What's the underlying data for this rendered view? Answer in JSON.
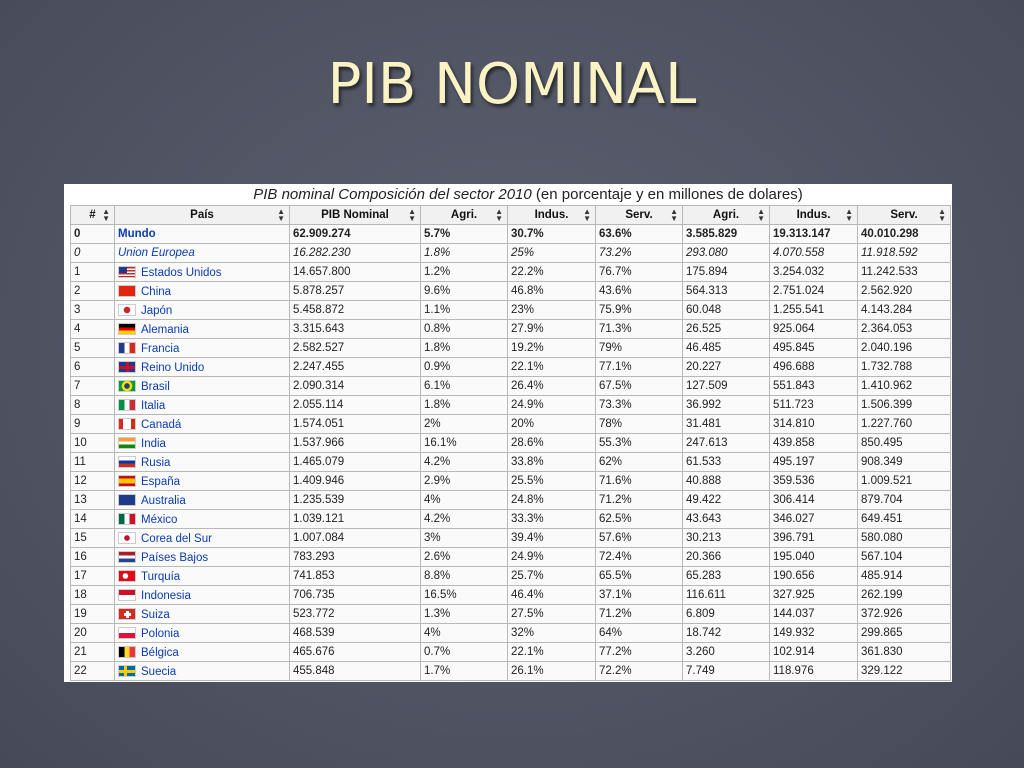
{
  "slide": {
    "title": "PIB NOMINAL"
  },
  "table": {
    "caption_italic": "PIB nominal Composición del sector 2010",
    "caption_rest": "(en porcentaje y en millones de dolares)",
    "headers": [
      "#",
      "País",
      "PIB Nominal",
      "Agri.",
      "Indus.",
      "Serv.",
      "Agri.",
      "Indus.",
      "Serv."
    ],
    "rows": [
      {
        "n": "0",
        "country": "Mundo",
        "flag": "none",
        "pib": "62.909.274",
        "agri_pct": "5.7%",
        "indus_pct": "30.7%",
        "serv_pct": "63.6%",
        "agri": "3.585.829",
        "indus": "19.313.147",
        "serv": "40.010.298"
      },
      {
        "n": "0",
        "country": "Union Europea",
        "flag": "none",
        "pib": "16.282.230",
        "agri_pct": "1.8%",
        "indus_pct": "25%",
        "serv_pct": "73.2%",
        "agri": "293.080",
        "indus": "4.070.558",
        "serv": "11.918.592"
      },
      {
        "n": "1",
        "country": "Estados Unidos",
        "flag": "us",
        "pib": "14.657.800",
        "agri_pct": "1.2%",
        "indus_pct": "22.2%",
        "serv_pct": "76.7%",
        "agri": "175.894",
        "indus": "3.254.032",
        "serv": "11.242.533"
      },
      {
        "n": "2",
        "country": "China",
        "flag": "cn",
        "pib": "5.878.257",
        "agri_pct": "9.6%",
        "indus_pct": "46.8%",
        "serv_pct": "43.6%",
        "agri": "564.313",
        "indus": "2.751.024",
        "serv": "2.562.920"
      },
      {
        "n": "3",
        "country": "Japón",
        "flag": "jp",
        "pib": "5.458.872",
        "agri_pct": "1.1%",
        "indus_pct": "23%",
        "serv_pct": "75.9%",
        "agri": "60.048",
        "indus": "1.255.541",
        "serv": "4.143.284"
      },
      {
        "n": "4",
        "country": "Alemania",
        "flag": "de",
        "pib": "3.315.643",
        "agri_pct": "0.8%",
        "indus_pct": "27.9%",
        "serv_pct": "71.3%",
        "agri": "26.525",
        "indus": "925.064",
        "serv": "2.364.053"
      },
      {
        "n": "5",
        "country": "Francia",
        "flag": "fr",
        "pib": "2.582.527",
        "agri_pct": "1.8%",
        "indus_pct": "19.2%",
        "serv_pct": "79%",
        "agri": "46.485",
        "indus": "495.845",
        "serv": "2.040.196"
      },
      {
        "n": "6",
        "country": "Reino Unido",
        "flag": "gb",
        "pib": "2.247.455",
        "agri_pct": "0.9%",
        "indus_pct": "22.1%",
        "serv_pct": "77.1%",
        "agri": "20.227",
        "indus": "496.688",
        "serv": "1.732.788"
      },
      {
        "n": "7",
        "country": "Brasil",
        "flag": "br",
        "pib": "2.090.314",
        "agri_pct": "6.1%",
        "indus_pct": "26.4%",
        "serv_pct": "67.5%",
        "agri": "127.509",
        "indus": "551.843",
        "serv": "1.410.962"
      },
      {
        "n": "8",
        "country": "Italia",
        "flag": "it",
        "pib": "2.055.114",
        "agri_pct": "1.8%",
        "indus_pct": "24.9%",
        "serv_pct": "73.3%",
        "agri": "36.992",
        "indus": "511.723",
        "serv": "1.506.399"
      },
      {
        "n": "9",
        "country": "Canadá",
        "flag": "ca",
        "pib": "1.574.051",
        "agri_pct": "2%",
        "indus_pct": "20%",
        "serv_pct": "78%",
        "agri": "31.481",
        "indus": "314.810",
        "serv": "1.227.760"
      },
      {
        "n": "10",
        "country": "India",
        "flag": "in",
        "pib": "1.537.966",
        "agri_pct": "16.1%",
        "indus_pct": "28.6%",
        "serv_pct": "55.3%",
        "agri": "247.613",
        "indus": "439.858",
        "serv": "850.495"
      },
      {
        "n": "11",
        "country": "Rusia",
        "flag": "ru",
        "pib": "1.465.079",
        "agri_pct": "4.2%",
        "indus_pct": "33.8%",
        "serv_pct": "62%",
        "agri": "61.533",
        "indus": "495.197",
        "serv": "908.349"
      },
      {
        "n": "12",
        "country": "España",
        "flag": "es",
        "pib": "1.409.946",
        "agri_pct": "2.9%",
        "indus_pct": "25.5%",
        "serv_pct": "71.6%",
        "agri": "40.888",
        "indus": "359.536",
        "serv": "1.009.521"
      },
      {
        "n": "13",
        "country": "Australia",
        "flag": "au",
        "pib": "1.235.539",
        "agri_pct": "4%",
        "indus_pct": "24.8%",
        "serv_pct": "71.2%",
        "agri": "49.422",
        "indus": "306.414",
        "serv": "879.704"
      },
      {
        "n": "14",
        "country": "México",
        "flag": "mx",
        "pib": "1.039.121",
        "agri_pct": "4.2%",
        "indus_pct": "33.3%",
        "serv_pct": "62.5%",
        "agri": "43.643",
        "indus": "346.027",
        "serv": "649.451"
      },
      {
        "n": "15",
        "country": "Corea del Sur",
        "flag": "kr",
        "pib": "1.007.084",
        "agri_pct": "3%",
        "indus_pct": "39.4%",
        "serv_pct": "57.6%",
        "agri": "30.213",
        "indus": "396.791",
        "serv": "580.080"
      },
      {
        "n": "16",
        "country": "Países Bajos",
        "flag": "nl",
        "pib": "783.293",
        "agri_pct": "2.6%",
        "indus_pct": "24.9%",
        "serv_pct": "72.4%",
        "agri": "20.366",
        "indus": "195.040",
        "serv": "567.104"
      },
      {
        "n": "17",
        "country": "Turquía",
        "flag": "tr",
        "pib": "741.853",
        "agri_pct": "8.8%",
        "indus_pct": "25.7%",
        "serv_pct": "65.5%",
        "agri": "65.283",
        "indus": "190.656",
        "serv": "485.914"
      },
      {
        "n": "18",
        "country": "Indonesia",
        "flag": "id",
        "pib": "706.735",
        "agri_pct": "16.5%",
        "indus_pct": "46.4%",
        "serv_pct": "37.1%",
        "agri": "116.611",
        "indus": "327.925",
        "serv": "262.199"
      },
      {
        "n": "19",
        "country": "Suiza",
        "flag": "ch",
        "pib": "523.772",
        "agri_pct": "1.3%",
        "indus_pct": "27.5%",
        "serv_pct": "71.2%",
        "agri": "6.809",
        "indus": "144.037",
        "serv": "372.926"
      },
      {
        "n": "20",
        "country": "Polonia",
        "flag": "pl",
        "pib": "468.539",
        "agri_pct": "4%",
        "indus_pct": "32%",
        "serv_pct": "64%",
        "agri": "18.742",
        "indus": "149.932",
        "serv": "299.865"
      },
      {
        "n": "21",
        "country": "Bélgica",
        "flag": "be",
        "pib": "465.676",
        "agri_pct": "0.7%",
        "indus_pct": "22.1%",
        "serv_pct": "77.2%",
        "agri": "3.260",
        "indus": "102.914",
        "serv": "361.830"
      },
      {
        "n": "22",
        "country": "Suecia",
        "flag": "se",
        "pib": "455.848",
        "agri_pct": "1.7%",
        "indus_pct": "26.1%",
        "serv_pct": "72.2%",
        "agri": "7.749",
        "indus": "118.976",
        "serv": "329.122"
      }
    ]
  }
}
